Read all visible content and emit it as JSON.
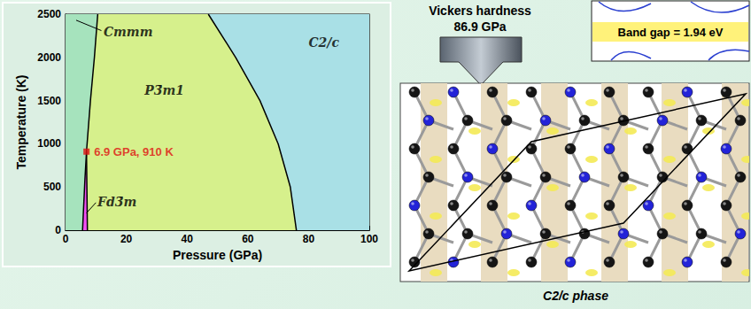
{
  "chart_data": {
    "type": "phase_diagram",
    "xlabel": "Pressure (GPa)",
    "ylabel": "Temperature (K)",
    "xlim": [
      0,
      100
    ],
    "xticks": [
      0,
      20,
      40,
      60,
      80,
      100
    ],
    "ylim": [
      0,
      2500
    ],
    "yticks": [
      0,
      500,
      1000,
      1500,
      2000,
      2500
    ],
    "grid": false,
    "regions": [
      {
        "name": "Cmmm",
        "color": "#a6e3bd",
        "x": [
          0,
          5.6,
          6.4,
          6.9,
          8.2,
          9.5,
          10.6,
          0
        ],
        "y": [
          0,
          0,
          600,
          910,
          1500,
          2000,
          2500,
          2500
        ]
      },
      {
        "name": "P3̄m1",
        "color": "#d6f08c",
        "x": [
          7.2,
          76,
          74,
          70,
          64,
          56,
          47,
          10.6,
          9.5,
          8.2,
          6.9,
          7.0
        ],
        "y": [
          0,
          0,
          500,
          1000,
          1500,
          2000,
          2500,
          2500,
          2000,
          1500,
          910,
          600
        ]
      },
      {
        "name": "C2/c",
        "color": "#a9e0e6",
        "x": [
          76,
          100,
          100,
          47,
          56,
          64,
          70,
          74
        ],
        "y": [
          0,
          0,
          2500,
          2500,
          2000,
          1500,
          1000,
          500
        ]
      },
      {
        "name": "Fd3̄m",
        "color": "#f24ef2",
        "x": [
          5.6,
          7.2,
          7.0,
          6.9,
          6.4
        ],
        "y": [
          0,
          0,
          600,
          910,
          600
        ]
      }
    ],
    "boundaries": [
      {
        "color": "#000000",
        "x": [
          6.9,
          8.2,
          9.5,
          10.6
        ],
        "y": [
          910,
          1500,
          2000,
          2500
        ]
      },
      {
        "color": "#000000",
        "x": [
          5.6,
          6.4,
          6.9
        ],
        "y": [
          0,
          600,
          910
        ]
      },
      {
        "color": "#000000",
        "x": [
          7.2,
          7.0,
          6.9
        ],
        "y": [
          0,
          600,
          910
        ]
      },
      {
        "color": "#000000",
        "x": [
          76,
          74,
          70,
          64,
          56,
          47
        ],
        "y": [
          0,
          500,
          1000,
          1500,
          2000,
          2500
        ]
      }
    ],
    "point": {
      "x": 6.9,
      "y": 910,
      "label": "6.9 GPa, 910 K",
      "color": "#e01010",
      "marker": "square"
    }
  },
  "hardness": {
    "title": "Vickers hardness",
    "value": "86.9 GPa"
  },
  "band_gap": {
    "label": "Band gap = 1.94 eV"
  },
  "structure": {
    "caption": "C2/c phase"
  }
}
